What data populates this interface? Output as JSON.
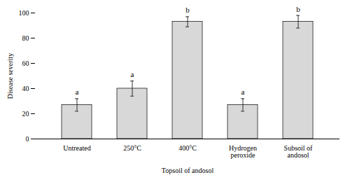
{
  "chart_data": {
    "type": "bar",
    "categories": [
      "Untreated",
      "250°C",
      "400°C",
      "Hydrogen\nperoxide",
      "Subsoil of\nandosol"
    ],
    "values": [
      27,
      40,
      93,
      27,
      93
    ],
    "errors": [
      5,
      6,
      4,
      5,
      5
    ],
    "annotations": [
      "a",
      "a",
      "b",
      "a",
      "b"
    ],
    "ylabel": "Disease severity",
    "xlabel": "Topsoil of andosol",
    "color": "#d8d8d8",
    "ylim": [
      0,
      100
    ],
    "yticks": [
      0,
      20,
      40,
      60,
      80,
      100
    ],
    "grid": false
  }
}
